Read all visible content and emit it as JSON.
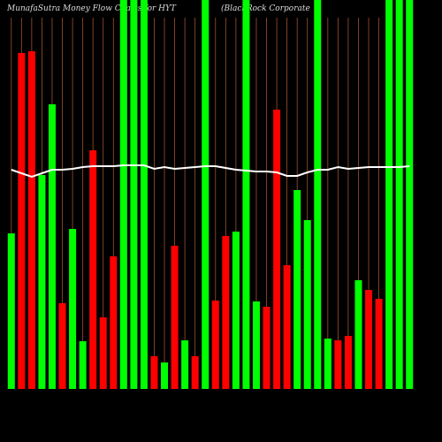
{
  "chart_data": {
    "type": "bar",
    "title": "MunafaSutra  Money Flow  Charts for HYT",
    "subtitle": "(BlackRock Corporate",
    "categories": [
      null,
      null,
      null,
      null,
      null,
      null,
      null,
      null,
      null,
      null,
      null,
      null,
      null,
      null,
      null,
      null,
      null,
      null,
      null,
      null,
      null,
      null,
      null,
      null,
      null,
      null,
      null,
      null,
      null,
      null,
      null,
      null,
      null,
      null,
      null,
      null,
      null,
      null,
      null,
      null
    ],
    "values": [
      176,
      380,
      382,
      242,
      322,
      97,
      181,
      54,
      270,
      81,
      150,
      440,
      440,
      440,
      37,
      30,
      162,
      55,
      37,
      440,
      100,
      173,
      178,
      440,
      99,
      93,
      316,
      140,
      225,
      191,
      440,
      57,
      55,
      60,
      123,
      112,
      102,
      440,
      440,
      440
    ],
    "colors": [
      "#00ff00",
      "#ff0000",
      "#ff0000",
      "#00ff00",
      "#00ff00",
      "#ff0000",
      "#00ff00",
      "#00ff00",
      "#ff0000",
      "#ff0000",
      "#ff0000",
      "#00ff00",
      "#00ff00",
      "#00ff00",
      "#ff0000",
      "#00ff00",
      "#ff0000",
      "#00ff00",
      "#ff0000",
      "#00ff00",
      "#ff0000",
      "#ff0000",
      "#00ff00",
      "#00ff00",
      "#00ff00",
      "#ff0000",
      "#ff0000",
      "#ff0000",
      "#00ff00",
      "#00ff00",
      "#00ff00",
      "#00ff00",
      "#ff0000",
      "#ff0000",
      "#00ff00",
      "#ff0000",
      "#ff0000",
      "#00ff00",
      "#00ff00",
      "#00ff00"
    ],
    "line": {
      "color": "#ffffff",
      "values": [
        248,
        244,
        240,
        244,
        248,
        248,
        249,
        251,
        252,
        252,
        252,
        253,
        253,
        253,
        249,
        251,
        249,
        250,
        251,
        252,
        252,
        250,
        248,
        247,
        246,
        246,
        245,
        241,
        241,
        245,
        248,
        248,
        251,
        249,
        250,
        251,
        251,
        251,
        251,
        252
      ]
    },
    "ylim": [
      0,
      440
    ]
  }
}
